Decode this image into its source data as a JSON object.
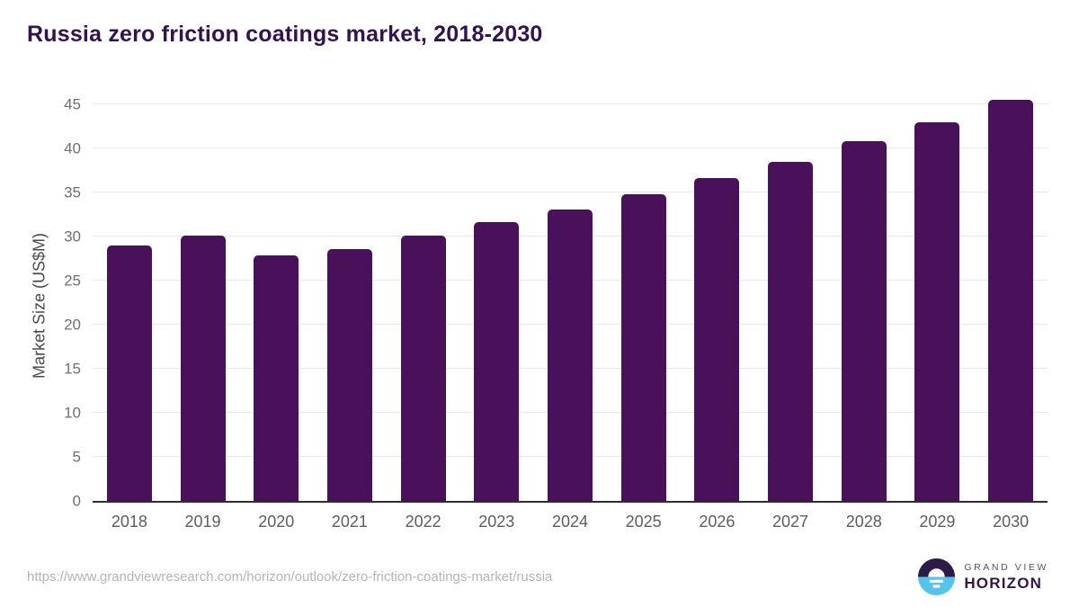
{
  "chart_data": {
    "type": "bar",
    "title": "Russia zero friction coatings market, 2018-2030",
    "ylabel": "Market Size (US$M)",
    "xlabel": "",
    "categories": [
      "2018",
      "2019",
      "2020",
      "2021",
      "2022",
      "2023",
      "2024",
      "2025",
      "2026",
      "2027",
      "2028",
      "2029",
      "2030"
    ],
    "values": [
      29.0,
      30.1,
      27.9,
      28.6,
      30.1,
      31.6,
      33.1,
      34.8,
      36.6,
      38.5,
      40.8,
      43.0,
      45.5
    ],
    "ylim": [
      0,
      45
    ],
    "ytick_step": 5,
    "grid": true,
    "legend": "none",
    "bar_color": "#49115a",
    "gridline_color": "#e8e8e8",
    "axis_line_color": "#2e2e2e"
  },
  "colors": {
    "title": "#33124e",
    "bar": "#49115a",
    "logo_purple": "#2e1a47",
    "logo_blue": "#56c3ea"
  },
  "footer": {
    "source_url": "https://www.grandviewresearch.com/horizon/outlook/zero-friction-coatings-market/russia",
    "brand_top": "GRAND VIEW",
    "brand_bottom": "HORIZON"
  }
}
